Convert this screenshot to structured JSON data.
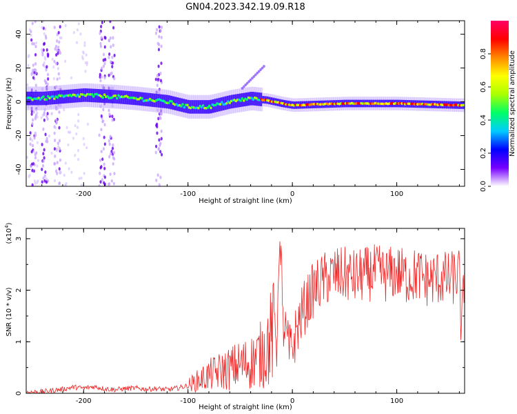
{
  "title": "GN04.2023.342.19.09.R18",
  "chart_data": [
    {
      "type": "heatmap",
      "xlabel": "Height of straight line (km)",
      "ylabel": "Frequency (Hz)",
      "xlim": [
        -255,
        165
      ],
      "ylim": [
        -50,
        48
      ],
      "x_ticks": [
        -200,
        -100,
        0,
        100
      ],
      "y_ticks": [
        -40,
        -20,
        0,
        20,
        40
      ],
      "colorbar": {
        "label": "Normalized spectral amplitude",
        "range": [
          0,
          1
        ],
        "ticks": [
          "0.0",
          "0.2",
          "0.4",
          "0.6",
          "0.8"
        ],
        "colors": [
          "#ffffff",
          "#7700ff",
          "#0000ff",
          "#00ccff",
          "#00ff66",
          "#aaff00",
          "#ffff00",
          "#ff8800",
          "#ff0000",
          "#ff0066"
        ]
      },
      "ridge": [
        {
          "x": -240,
          "f": 2
        },
        {
          "x": -200,
          "f": 4
        },
        {
          "x": -170,
          "f": 3
        },
        {
          "x": -150,
          "f": 2
        },
        {
          "x": -120,
          "f": 0
        },
        {
          "x": -100,
          "f": -3
        },
        {
          "x": -80,
          "f": -3
        },
        {
          "x": -60,
          "f": 0
        },
        {
          "x": -40,
          "f": 2
        },
        {
          "x": -25,
          "f": 1
        },
        {
          "x": -10,
          "f": -1
        },
        {
          "x": 0,
          "f": -2
        },
        {
          "x": 50,
          "f": -1
        },
        {
          "x": 100,
          "f": -1
        },
        {
          "x": 160,
          "f": -2
        }
      ],
      "vertical_noise_bands_x": [
        -248,
        -237,
        -225,
        -182,
        -173,
        -128
      ]
    },
    {
      "type": "line",
      "xlabel": "Height of straight line (km)",
      "ylabel": "SNR (10 * v/v)",
      "yscale_label": "(x10",
      "yscale_exp": "4",
      "yscale_close": ")",
      "xlim": [
        -255,
        165
      ],
      "ylim": [
        0,
        3.2
      ],
      "x_ticks": [
        -200,
        -100,
        0,
        100
      ],
      "y_ticks": [
        0,
        1,
        2,
        3
      ],
      "color": "#ee2222",
      "series": [
        {
          "x": [
            -255,
            -240,
            -220,
            -210,
            -200,
            -190,
            -180,
            -170,
            -160,
            -150,
            -140,
            -130,
            -120,
            -110,
            -100,
            -90,
            -80,
            -70,
            -60,
            -50,
            -40,
            -30,
            -25,
            -20,
            -15,
            -12,
            -10,
            -8,
            -5,
            -3,
            0,
            5,
            10,
            15,
            20,
            25,
            30,
            40,
            50,
            60,
            70,
            80,
            90,
            100,
            110,
            120,
            130,
            140,
            150,
            160,
            162,
            165
          ],
          "y": [
            0.02,
            0.03,
            0.08,
            0.12,
            0.1,
            0.13,
            0.09,
            0.07,
            0.09,
            0.1,
            0.08,
            0.09,
            0.07,
            0.1,
            0.15,
            0.25,
            0.35,
            0.42,
            0.48,
            0.55,
            0.6,
            0.75,
            0.9,
            1.1,
            1.3,
            2.95,
            1.4,
            1.3,
            1.0,
            0.8,
            0.9,
            1.3,
            1.6,
            1.8,
            2.0,
            2.1,
            2.2,
            2.3,
            2.3,
            2.25,
            2.3,
            2.35,
            2.3,
            2.35,
            2.25,
            2.3,
            2.2,
            2.25,
            2.2,
            2.3,
            1.15,
            2.4
          ]
        }
      ]
    }
  ]
}
